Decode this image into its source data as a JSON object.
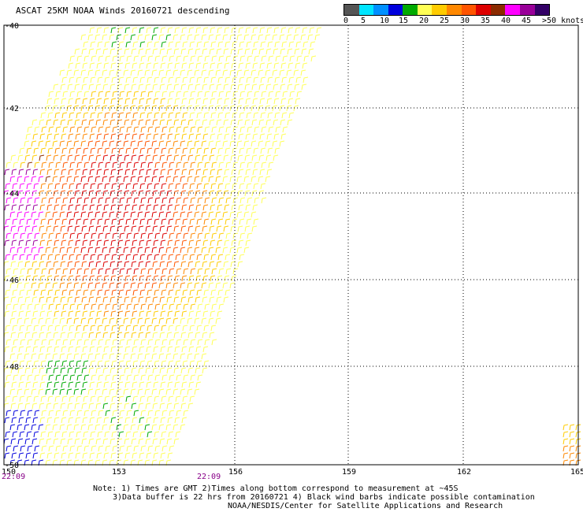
{
  "title": "ASCAT 25KM NOAA Winds 20160721 descending",
  "legend": {
    "colors": [
      "#555555",
      "#00e5ff",
      "#0090ff",
      "#0000dd",
      "#00aa00",
      "#ffff55",
      "#ffcc00",
      "#ff8800",
      "#ff5500",
      "#dd0000",
      "#8b2b00",
      "#ff00ff",
      "#990099",
      "#330066"
    ],
    "labels": [
      "0",
      "5",
      "10",
      "15",
      "20",
      "25",
      "30",
      "35",
      "40",
      "45",
      ">50 knots"
    ]
  },
  "map": {
    "lon_ticks": [
      "150",
      "153",
      "156",
      "159",
      "162",
      "165"
    ],
    "lat_ticks": [
      "-40",
      "-42",
      "-44",
      "-46",
      "-48",
      "-50"
    ],
    "time_labels": [
      "22:09",
      "22:09"
    ],
    "time_color": "#880088",
    "grid_color": "#000000"
  },
  "notes": {
    "line1": "Note: 1) Times are GMT 2)Times along bottom correspond to measurement at ~45S",
    "line2": "3)Data buffer is 22 hrs from 20160721 4) Black wind barbs indicate possible contamination",
    "line3": "NOAA/NESDIS/Center for Satellite Applications and Research"
  }
}
